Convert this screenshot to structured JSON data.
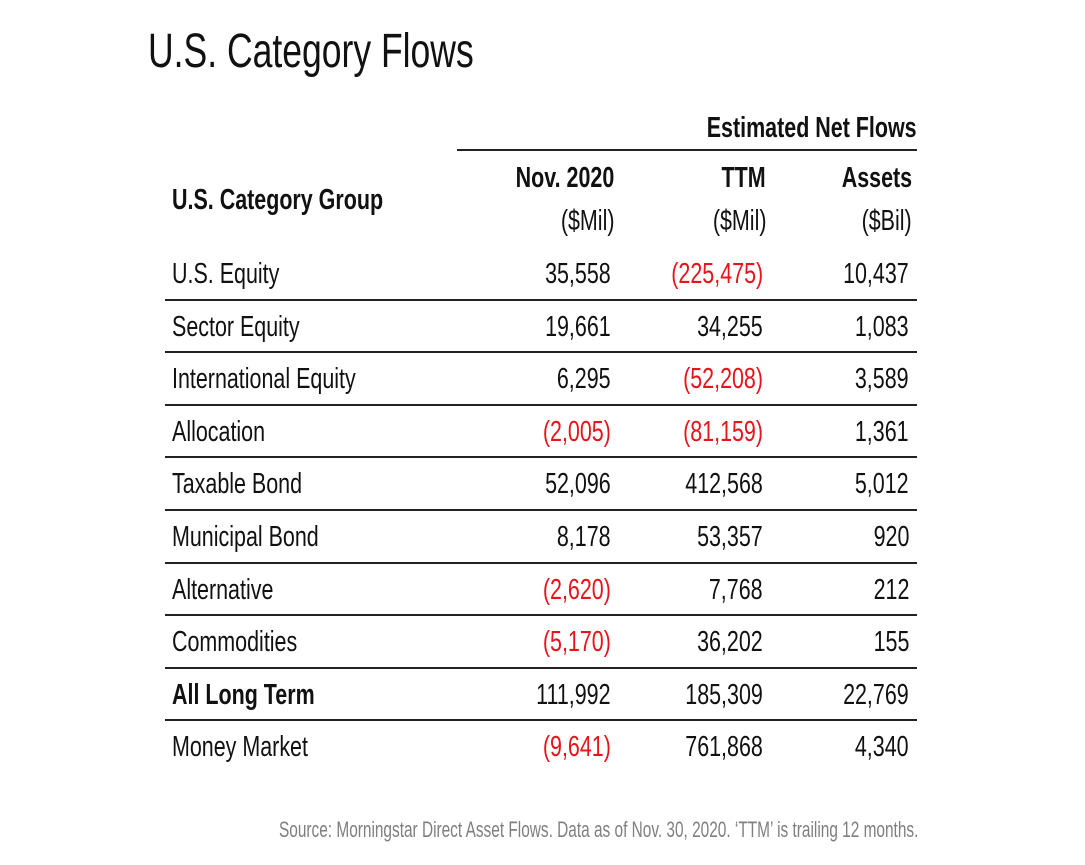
{
  "title": "U.S. Category Flows",
  "group_header": "Estimated Net Flows",
  "category_header": "U.S. Category Group",
  "columns": [
    {
      "title": "Nov. 2020",
      "unit": "($Mil)"
    },
    {
      "title": "TTM",
      "unit": "($Mil)"
    },
    {
      "title": "Assets",
      "unit": "($Bil)"
    }
  ],
  "negative_color": "#e8141b",
  "rows": [
    {
      "label": "U.S. Equity",
      "bold": false,
      "values": [
        "35,558",
        "(225,475)",
        "10,437"
      ],
      "negative": [
        false,
        true,
        false
      ]
    },
    {
      "label": "Sector Equity",
      "bold": false,
      "values": [
        "19,661",
        "34,255",
        "1,083"
      ],
      "negative": [
        false,
        false,
        false
      ]
    },
    {
      "label": "International Equity",
      "bold": false,
      "values": [
        "6,295",
        "(52,208)",
        "3,589"
      ],
      "negative": [
        false,
        true,
        false
      ]
    },
    {
      "label": "Allocation",
      "bold": false,
      "values": [
        "(2,005)",
        "(81,159)",
        "1,361"
      ],
      "negative": [
        true,
        true,
        false
      ]
    },
    {
      "label": "Taxable Bond",
      "bold": false,
      "values": [
        "52,096",
        "412,568",
        "5,012"
      ],
      "negative": [
        false,
        false,
        false
      ]
    },
    {
      "label": "Municipal Bond",
      "bold": false,
      "values": [
        "8,178",
        "53,357",
        "920"
      ],
      "negative": [
        false,
        false,
        false
      ]
    },
    {
      "label": "Alternative",
      "bold": false,
      "values": [
        "(2,620)",
        "7,768",
        "212"
      ],
      "negative": [
        true,
        false,
        false
      ]
    },
    {
      "label": "Commodities",
      "bold": false,
      "values": [
        "(5,170)",
        "36,202",
        "155"
      ],
      "negative": [
        true,
        false,
        false
      ]
    },
    {
      "label": "All Long Term",
      "bold": true,
      "values": [
        "111,992",
        "185,309",
        "22,769"
      ],
      "negative": [
        false,
        false,
        false
      ]
    },
    {
      "label": "Money Market",
      "bold": false,
      "values": [
        "(9,641)",
        "761,868",
        "4,340"
      ],
      "negative": [
        true,
        false,
        false
      ]
    }
  ],
  "footnote": "Source: Morningstar Direct Asset Flows. Data as of Nov. 30, 2020. ‘TTM’ is trailing 12 months."
}
